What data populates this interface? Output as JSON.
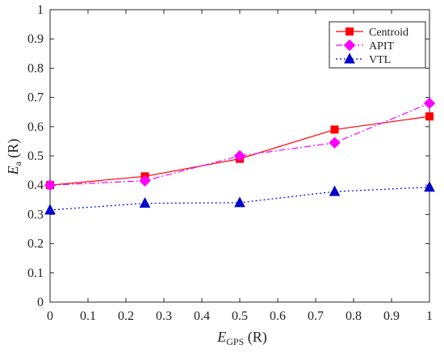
{
  "chart_data": {
    "type": "line",
    "x": [
      0,
      0.25,
      0.5,
      0.75,
      1
    ],
    "xlim": [
      0,
      1
    ],
    "ylim": [
      0,
      1
    ],
    "xticks": [
      "0",
      "0.1",
      "0.2",
      "0.3",
      "0.4",
      "0.5",
      "0.6",
      "0.7",
      "0.8",
      "0.9",
      "1"
    ],
    "yticks": [
      "0",
      "0.1",
      "0.2",
      "0.3",
      "0.4",
      "0.5",
      "0.6",
      "0.7",
      "0.8",
      "0.9",
      "1"
    ],
    "xlabel": {
      "main": "E",
      "sub": "GPS",
      "unit": " (R)"
    },
    "ylabel": {
      "main": "E",
      "sub": "a",
      "unit": " (R)"
    },
    "grid": false,
    "legend_position": "top-right",
    "series": [
      {
        "name": "Centroid",
        "values": [
          0.4,
          0.43,
          0.49,
          0.59,
          0.635
        ],
        "color": "#ff0000",
        "marker": "square",
        "line_style": "solid"
      },
      {
        "name": "APIT",
        "values": [
          0.4,
          0.415,
          0.5,
          0.545,
          0.68
        ],
        "color": "#ff00ff",
        "marker": "diamond",
        "line_style": "dashdot"
      },
      {
        "name": "VTL",
        "values": [
          0.315,
          0.338,
          0.34,
          0.378,
          0.393
        ],
        "color": "#0000cc",
        "marker": "triangle",
        "line_style": "dotted"
      }
    ]
  }
}
